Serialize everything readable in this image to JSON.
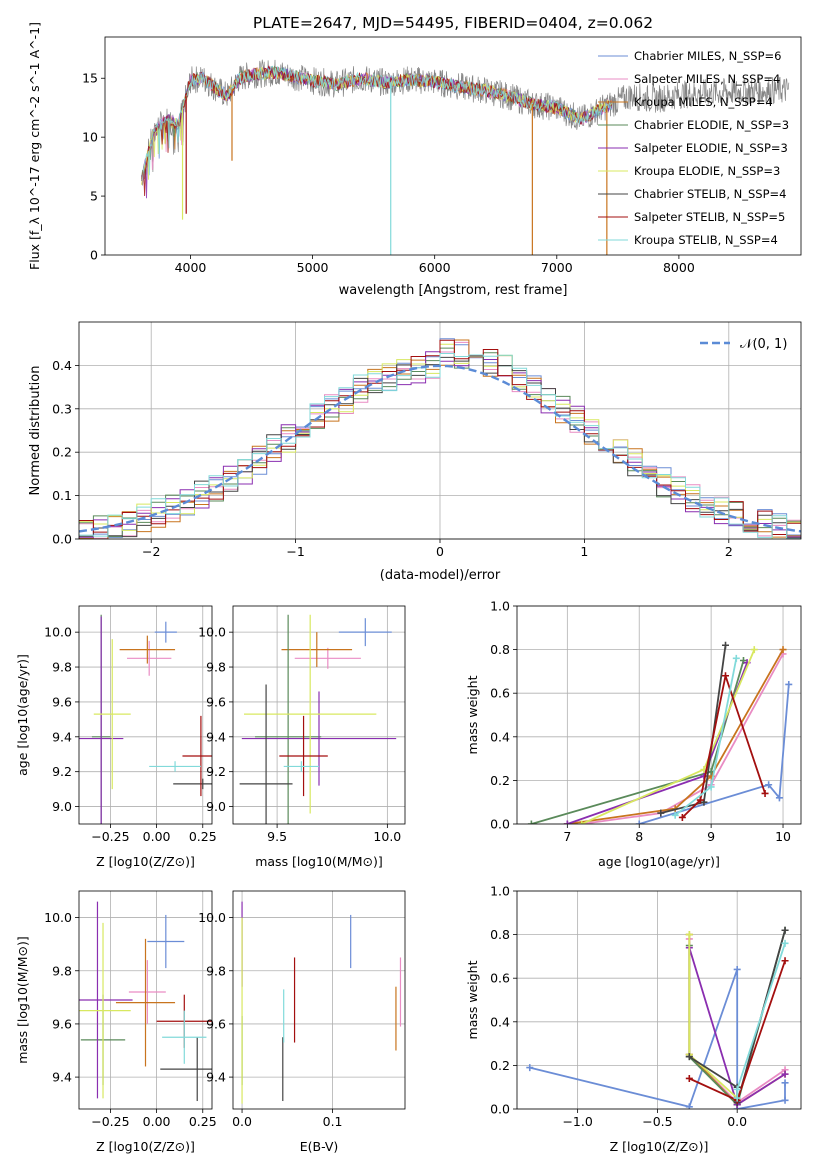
{
  "colors": [
    "#6b8dd6",
    "#e98cc4",
    "#c8741e",
    "#5a8a5a",
    "#8a2eb0",
    "#d8e860",
    "#444444",
    "#a30f0f",
    "#82dada"
  ],
  "chart_data": [
    {
      "id": "spectrum",
      "type": "line",
      "title": "PLATE=2647, MJD=54495, FIBERID=0404, z=0.062",
      "xlabel": "wavelength [Angstrom, rest frame]",
      "ylabel": "Flux [f_λ 10^-17 erg cm^-2 s^-1 A^-1]",
      "xlim": [
        3300,
        9000
      ],
      "ylim": [
        0,
        18.5
      ],
      "xticks": [
        "4000",
        "5000",
        "6000",
        "7000",
        "8000"
      ],
      "yticks": [
        "0",
        "5",
        "10",
        "15"
      ],
      "grid": false,
      "legend_position": "top-right",
      "series": [
        {
          "name": "Chabrier MILES, N_SSP=6"
        },
        {
          "name": "Salpeter MILES, N_SSP=4"
        },
        {
          "name": "Kroupa MILES, N_SSP=4"
        },
        {
          "name": "Chabrier ELODIE, N_SSP=3"
        },
        {
          "name": "Salpeter ELODIE, N_SSP=3"
        },
        {
          "name": "Kroupa ELODIE, N_SSP=3"
        },
        {
          "name": "Chabrier STELIB, N_SSP=4"
        },
        {
          "name": "Salpeter STELIB, N_SSP=5"
        },
        {
          "name": "Kroupa STELIB, N_SSP=4"
        }
      ],
      "continuum": {
        "x": [
          3600,
          3700,
          3800,
          3900,
          4000,
          4100,
          4200,
          4300,
          4400,
          4500,
          4700,
          5000,
          5200,
          5400,
          5600,
          5800,
          6000,
          6200,
          6400,
          6600,
          6800,
          7000,
          7200,
          7400,
          7600,
          7800,
          8000,
          8300,
          8600,
          8900
        ],
        "y": [
          6.5,
          10.5,
          11.5,
          11.0,
          14.8,
          15.0,
          14.2,
          13.5,
          15.0,
          15.3,
          15.5,
          14.8,
          14.5,
          15.0,
          14.6,
          14.9,
          14.7,
          14.3,
          14.0,
          13.5,
          12.8,
          12.5,
          11.5,
          12.6,
          13.5,
          13.2,
          13.6,
          13.8,
          13.9,
          14.0
        ]
      }
    },
    {
      "id": "residuals",
      "type": "histogram",
      "xlabel": "(data-model)/error",
      "ylabel": "Normed distribution",
      "xlim": [
        -2.5,
        2.5
      ],
      "ylim": [
        0,
        0.5
      ],
      "xticks": [
        "−2",
        "−1",
        "0",
        "1",
        "2"
      ],
      "yticks": [
        "0.0",
        "0.1",
        "0.2",
        "0.3",
        "0.4"
      ],
      "grid": true,
      "legend": {
        "label": "𝒩(0, 1)",
        "position": "top-right"
      }
    },
    {
      "id": "age-vs-Z",
      "type": "scatter",
      "xlabel": "Z [log10(Z/Z⊙)]",
      "ylabel": "age [log10(age/yr)]",
      "xlim": [
        -0.42,
        0.3
      ],
      "ylim": [
        8.9,
        10.15
      ],
      "xticks": [
        "−0.25",
        "0.00",
        "0.25"
      ],
      "yticks": [
        "9.0",
        "9.2",
        "9.4",
        "9.6",
        "9.8",
        "10.0"
      ],
      "grid": true,
      "points": [
        {
          "c": 0,
          "x": 0.05,
          "y": 10.0,
          "xerr": 0.06,
          "yerr": 0.06
        },
        {
          "c": 1,
          "x": -0.04,
          "y": 9.85,
          "xerr": 0.12,
          "yerr": 0.1
        },
        {
          "c": 2,
          "x": -0.05,
          "y": 9.9,
          "xerr": 0.15,
          "yerr": 0.08
        },
        {
          "c": 3,
          "x": -0.3,
          "y": 9.4,
          "xerr": 0.05,
          "yerr": 0.7
        },
        {
          "c": 4,
          "x": -0.3,
          "y": 9.39,
          "xerr": 0.12,
          "yerr": 0.7
        },
        {
          "c": 5,
          "x": -0.24,
          "y": 9.53,
          "xerr": 0.1,
          "yerr": 0.43
        },
        {
          "c": 6,
          "x": 0.25,
          "y": 9.13,
          "xerr": 0.16,
          "yerr": 0.03
        },
        {
          "c": 7,
          "x": 0.24,
          "y": 9.29,
          "xerr": 0.1,
          "yerr": 0.23
        },
        {
          "c": 8,
          "x": 0.1,
          "y": 9.23,
          "xerr": 0.14,
          "yerr": 0.03
        }
      ]
    },
    {
      "id": "age-vs-mass",
      "type": "scatter",
      "xlabel": "mass [log10(M/M⊙)]",
      "xlim": [
        9.3,
        10.08
      ],
      "ylim": [
        8.9,
        10.15
      ],
      "xticks": [
        "9.5",
        "10.0"
      ],
      "yticks": [
        "9.0",
        "9.2",
        "9.4",
        "9.6",
        "9.8",
        "10.0"
      ],
      "grid": true,
      "points": [
        {
          "c": 0,
          "x": 9.9,
          "y": 10.0,
          "xerr": 0.12,
          "yerr": 0.08
        },
        {
          "c": 1,
          "x": 9.73,
          "y": 9.85,
          "xerr": 0.15,
          "yerr": 0.06
        },
        {
          "c": 2,
          "x": 9.68,
          "y": 9.9,
          "xerr": 0.16,
          "yerr": 0.1
        },
        {
          "c": 3,
          "x": 9.55,
          "y": 9.4,
          "xerr": 0.15,
          "yerr": 0.7
        },
        {
          "c": 4,
          "x": 9.69,
          "y": 9.39,
          "xerr": 0.35,
          "yerr": 0.27
        },
        {
          "c": 5,
          "x": 9.65,
          "y": 9.53,
          "xerr": 0.3,
          "yerr": 0.57
        },
        {
          "c": 6,
          "x": 9.45,
          "y": 9.13,
          "xerr": 0.12,
          "yerr": 0.57
        },
        {
          "c": 7,
          "x": 9.62,
          "y": 9.29,
          "xerr": 0.11,
          "yerr": 0.23
        },
        {
          "c": 8,
          "x": 9.61,
          "y": 9.23,
          "xerr": 0.08,
          "yerr": 0.03
        }
      ]
    },
    {
      "id": "mass-weight-vs-age",
      "type": "line",
      "xlabel": "age [log10(age/yr)]",
      "ylabel": "mass weight",
      "xlim": [
        6.3,
        10.25
      ],
      "ylim": [
        0,
        1.0
      ],
      "xticks": [
        "7",
        "8",
        "9",
        "10"
      ],
      "yticks": [
        "0.0",
        "0.2",
        "0.4",
        "0.6",
        "0.8",
        "1.0"
      ],
      "grid": true,
      "series": [
        {
          "c": 0,
          "x": [
            8.0,
            9.8,
            9.95,
            10.08
          ],
          "y": [
            0.0,
            0.18,
            0.12,
            0.64
          ]
        },
        {
          "c": 1,
          "x": [
            7.2,
            8.3,
            9.0,
            10.0
          ],
          "y": [
            0.0,
            0.05,
            0.18,
            0.78
          ]
        },
        {
          "c": 2,
          "x": [
            7.0,
            8.5,
            9.0,
            10.0
          ],
          "y": [
            0.0,
            0.07,
            0.22,
            0.8
          ]
        },
        {
          "c": 3,
          "x": [
            6.5,
            9.0,
            9.45
          ],
          "y": [
            0.0,
            0.24,
            0.75
          ]
        },
        {
          "c": 4,
          "x": [
            7.0,
            8.9,
            9.5
          ],
          "y": [
            0.0,
            0.22,
            0.74
          ]
        },
        {
          "c": 5,
          "x": [
            7.2,
            8.9,
            9.6
          ],
          "y": [
            0.0,
            0.25,
            0.8
          ]
        },
        {
          "c": 6,
          "x": [
            8.3,
            8.9,
            9.2
          ],
          "y": [
            0.05,
            0.1,
            0.82
          ]
        },
        {
          "c": 7,
          "x": [
            8.6,
            8.85,
            9.2,
            9.75
          ],
          "y": [
            0.03,
            0.11,
            0.68,
            0.14
          ]
        },
        {
          "c": 8,
          "x": [
            8.5,
            9.0,
            9.35
          ],
          "y": [
            0.04,
            0.17,
            0.76
          ]
        }
      ]
    },
    {
      "id": "mass-vs-Z",
      "type": "scatter",
      "xlabel": "Z [log10(Z/Z⊙)]",
      "ylabel": "mass [log10(M/M⊙)]",
      "xlim": [
        -0.42,
        0.3
      ],
      "ylim": [
        9.28,
        10.1
      ],
      "xticks": [
        "−0.25",
        "0.00",
        "0.25"
      ],
      "yticks": [
        "9.4",
        "9.6",
        "9.8",
        "10.0"
      ],
      "grid": true,
      "points": [
        {
          "c": 0,
          "x": 0.05,
          "y": 9.91,
          "xerr": 0.1,
          "yerr": 0.1
        },
        {
          "c": 1,
          "x": -0.05,
          "y": 9.72,
          "xerr": 0.1,
          "yerr": 0.12
        },
        {
          "c": 2,
          "x": -0.06,
          "y": 9.68,
          "xerr": 0.16,
          "yerr": 0.24
        },
        {
          "c": 3,
          "x": -0.29,
          "y": 9.54,
          "xerr": 0.12,
          "yerr": 0.17
        },
        {
          "c": 4,
          "x": -0.32,
          "y": 9.69,
          "xerr": 0.19,
          "yerr": 0.37
        },
        {
          "c": 5,
          "x": -0.29,
          "y": 9.65,
          "xerr": 0.15,
          "yerr": 0.33
        },
        {
          "c": 6,
          "x": 0.22,
          "y": 9.43,
          "xerr": 0.2,
          "yerr": 0.12
        },
        {
          "c": 7,
          "x": 0.15,
          "y": 9.61,
          "xerr": 0.15,
          "yerr": 0.1
        },
        {
          "c": 8,
          "x": 0.15,
          "y": 9.55,
          "xerr": 0.12,
          "yerr": 0.1
        }
      ]
    },
    {
      "id": "mass-vs-ebv",
      "type": "scatter",
      "xlabel": "E(B-V)",
      "xlim": [
        -0.01,
        0.18
      ],
      "ylim": [
        9.28,
        10.1
      ],
      "xticks": [
        "0.0",
        "0.1"
      ],
      "yticks": [
        "9.4",
        "9.6",
        "9.8",
        "10.0"
      ],
      "grid": true,
      "points": [
        {
          "c": 0,
          "x": 0.12,
          "y": 9.91,
          "xerr": 0.0,
          "yerr": 0.1
        },
        {
          "c": 1,
          "x": 0.175,
          "y": 9.72,
          "xerr": 0.0,
          "yerr": 0.13
        },
        {
          "c": 2,
          "x": 0.17,
          "y": 9.62,
          "xerr": 0.0,
          "yerr": 0.12
        },
        {
          "c": 3,
          "x": 0.0,
          "y": 9.5,
          "xerr": 0.0,
          "yerr": 0.13
        },
        {
          "c": 4,
          "x": 0.0,
          "y": 9.9,
          "xerr": 0.0,
          "yerr": 0.16
        },
        {
          "c": 5,
          "x": 0.0,
          "y": 9.65,
          "xerr": 0.0,
          "yerr": 0.35
        },
        {
          "c": 6,
          "x": 0.045,
          "y": 9.43,
          "xerr": 0.0,
          "yerr": 0.12
        },
        {
          "c": 7,
          "x": 0.058,
          "y": 9.69,
          "xerr": 0.0,
          "yerr": 0.16
        },
        {
          "c": 8,
          "x": 0.046,
          "y": 9.63,
          "xerr": 0.0,
          "yerr": 0.1
        }
      ]
    },
    {
      "id": "mass-weight-vs-Z",
      "type": "line",
      "xlabel": "Z [log10(Z/Z⊙)]",
      "ylabel": "mass weight",
      "xlim": [
        -1.38,
        0.4
      ],
      "ylim": [
        0,
        1.0
      ],
      "xticks": [
        "−1.0",
        "−0.5",
        "0.0"
      ],
      "yticks": [
        "0.0",
        "0.2",
        "0.4",
        "0.6",
        "0.8",
        "1.0"
      ],
      "grid": true,
      "series": [
        {
          "c": 0,
          "x": [
            -1.3,
            -0.3,
            0.0,
            0.0,
            0.3,
            0.3
          ],
          "y": [
            0.19,
            0.01,
            0.64,
            0.0,
            0.04,
            0.12
          ]
        },
        {
          "c": 1,
          "x": [
            -0.3,
            -0.3,
            0.0,
            0.3
          ],
          "y": [
            0.78,
            0.25,
            0.03,
            0.18
          ]
        },
        {
          "c": 2,
          "x": [
            -0.3,
            -0.3,
            0.0,
            0.3
          ],
          "y": [
            0.8,
            0.25,
            0.02,
            0.16
          ]
        },
        {
          "c": 3,
          "x": [
            -0.3,
            -0.3,
            0.0,
            0.3
          ],
          "y": [
            0.75,
            0.24,
            0.02,
            0.82
          ]
        },
        {
          "c": 4,
          "x": [
            -0.3,
            0.0,
            0.3
          ],
          "y": [
            0.74,
            0.02,
            0.16
          ]
        },
        {
          "c": 5,
          "x": [
            -0.3,
            -0.3,
            0.0
          ],
          "y": [
            0.8,
            0.25,
            0.05
          ]
        },
        {
          "c": 6,
          "x": [
            -0.3,
            0.0,
            0.0,
            0.3
          ],
          "y": [
            0.24,
            0.1,
            0.03,
            0.82
          ]
        },
        {
          "c": 7,
          "x": [
            -0.3,
            0.0,
            0.3
          ],
          "y": [
            0.14,
            0.04,
            0.68
          ]
        },
        {
          "c": 8,
          "x": [
            0.0,
            0.0,
            0.3
          ],
          "y": [
            0.05,
            0.09,
            0.76
          ]
        }
      ]
    }
  ]
}
